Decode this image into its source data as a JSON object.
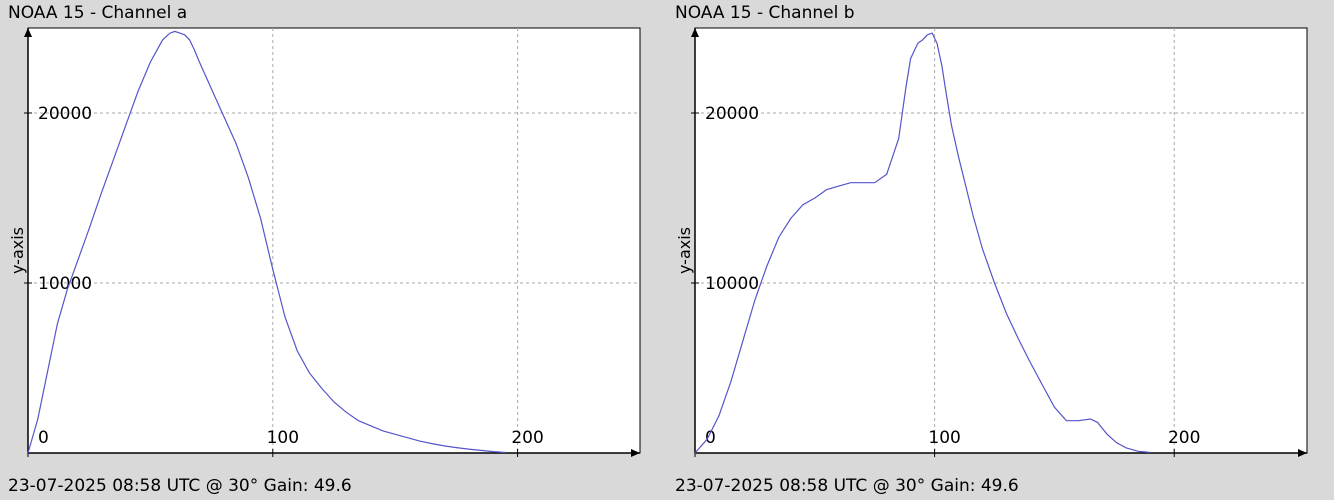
{
  "chart_data": [
    {
      "type": "line",
      "title": "NOAA 15 - Channel a",
      "footer": "23-07-2025 08:58 UTC @ 30° Gain: 49.6",
      "xlabel": "",
      "ylabel": "y-axis",
      "xlim": [
        0,
        250
      ],
      "ylim": [
        0,
        25000
      ],
      "x_ticks": [
        0,
        100,
        200
      ],
      "y_ticks": [
        10000,
        20000
      ],
      "grid": true,
      "line_color": "#5555cc",
      "series": [
        {
          "x": [
            0,
            4,
            8,
            12,
            16,
            20,
            25,
            30,
            35,
            40,
            45,
            50,
            55,
            58,
            60,
            62,
            64,
            66,
            68,
            70,
            75,
            80,
            85,
            90,
            95,
            100,
            105,
            110,
            115,
            120,
            125,
            130,
            135,
            140,
            145,
            150,
            155,
            160,
            165,
            170,
            175,
            180,
            185,
            190,
            195
          ],
          "y": [
            0,
            2000,
            4800,
            7600,
            9600,
            11200,
            13200,
            15300,
            17300,
            19300,
            21300,
            23000,
            24300,
            24700,
            24800,
            24700,
            24600,
            24300,
            23700,
            23000,
            21400,
            19800,
            18200,
            16200,
            13800,
            10800,
            8000,
            6000,
            4700,
            3800,
            3000,
            2400,
            1900,
            1600,
            1300,
            1100,
            900,
            700,
            550,
            420,
            320,
            230,
            150,
            80,
            30
          ]
        }
      ]
    },
    {
      "type": "line",
      "title": "NOAA 15 - Channel b",
      "footer": "23-07-2025 08:58 UTC @ 30° Gain: 49.6",
      "xlabel": "",
      "ylabel": "y-axis",
      "xlim": [
        0,
        255
      ],
      "ylim": [
        0,
        25000
      ],
      "x_ticks": [
        0,
        100,
        200
      ],
      "y_ticks": [
        10000,
        20000
      ],
      "grid": true,
      "line_color": "#5555cc",
      "series": [
        {
          "x": [
            0,
            5,
            10,
            15,
            20,
            25,
            30,
            35,
            40,
            45,
            50,
            55,
            60,
            65,
            70,
            75,
            80,
            85,
            88,
            90,
            93,
            95,
            97,
            99,
            101,
            103,
            105,
            107,
            110,
            113,
            116,
            120,
            125,
            130,
            135,
            140,
            145,
            150,
            155,
            160,
            165,
            168,
            172,
            176,
            180,
            185,
            190
          ],
          "y": [
            0,
            800,
            2200,
            4200,
            6600,
            9000,
            11000,
            12700,
            13800,
            14600,
            15000,
            15500,
            15700,
            15900,
            15900,
            15900,
            16400,
            18500,
            21500,
            23200,
            24100,
            24300,
            24600,
            24700,
            24100,
            22800,
            21000,
            19300,
            17400,
            15700,
            14000,
            12000,
            10000,
            8200,
            6700,
            5300,
            4000,
            2700,
            1900,
            1900,
            2000,
            1800,
            1100,
            600,
            300,
            100,
            30
          ]
        }
      ]
    }
  ]
}
